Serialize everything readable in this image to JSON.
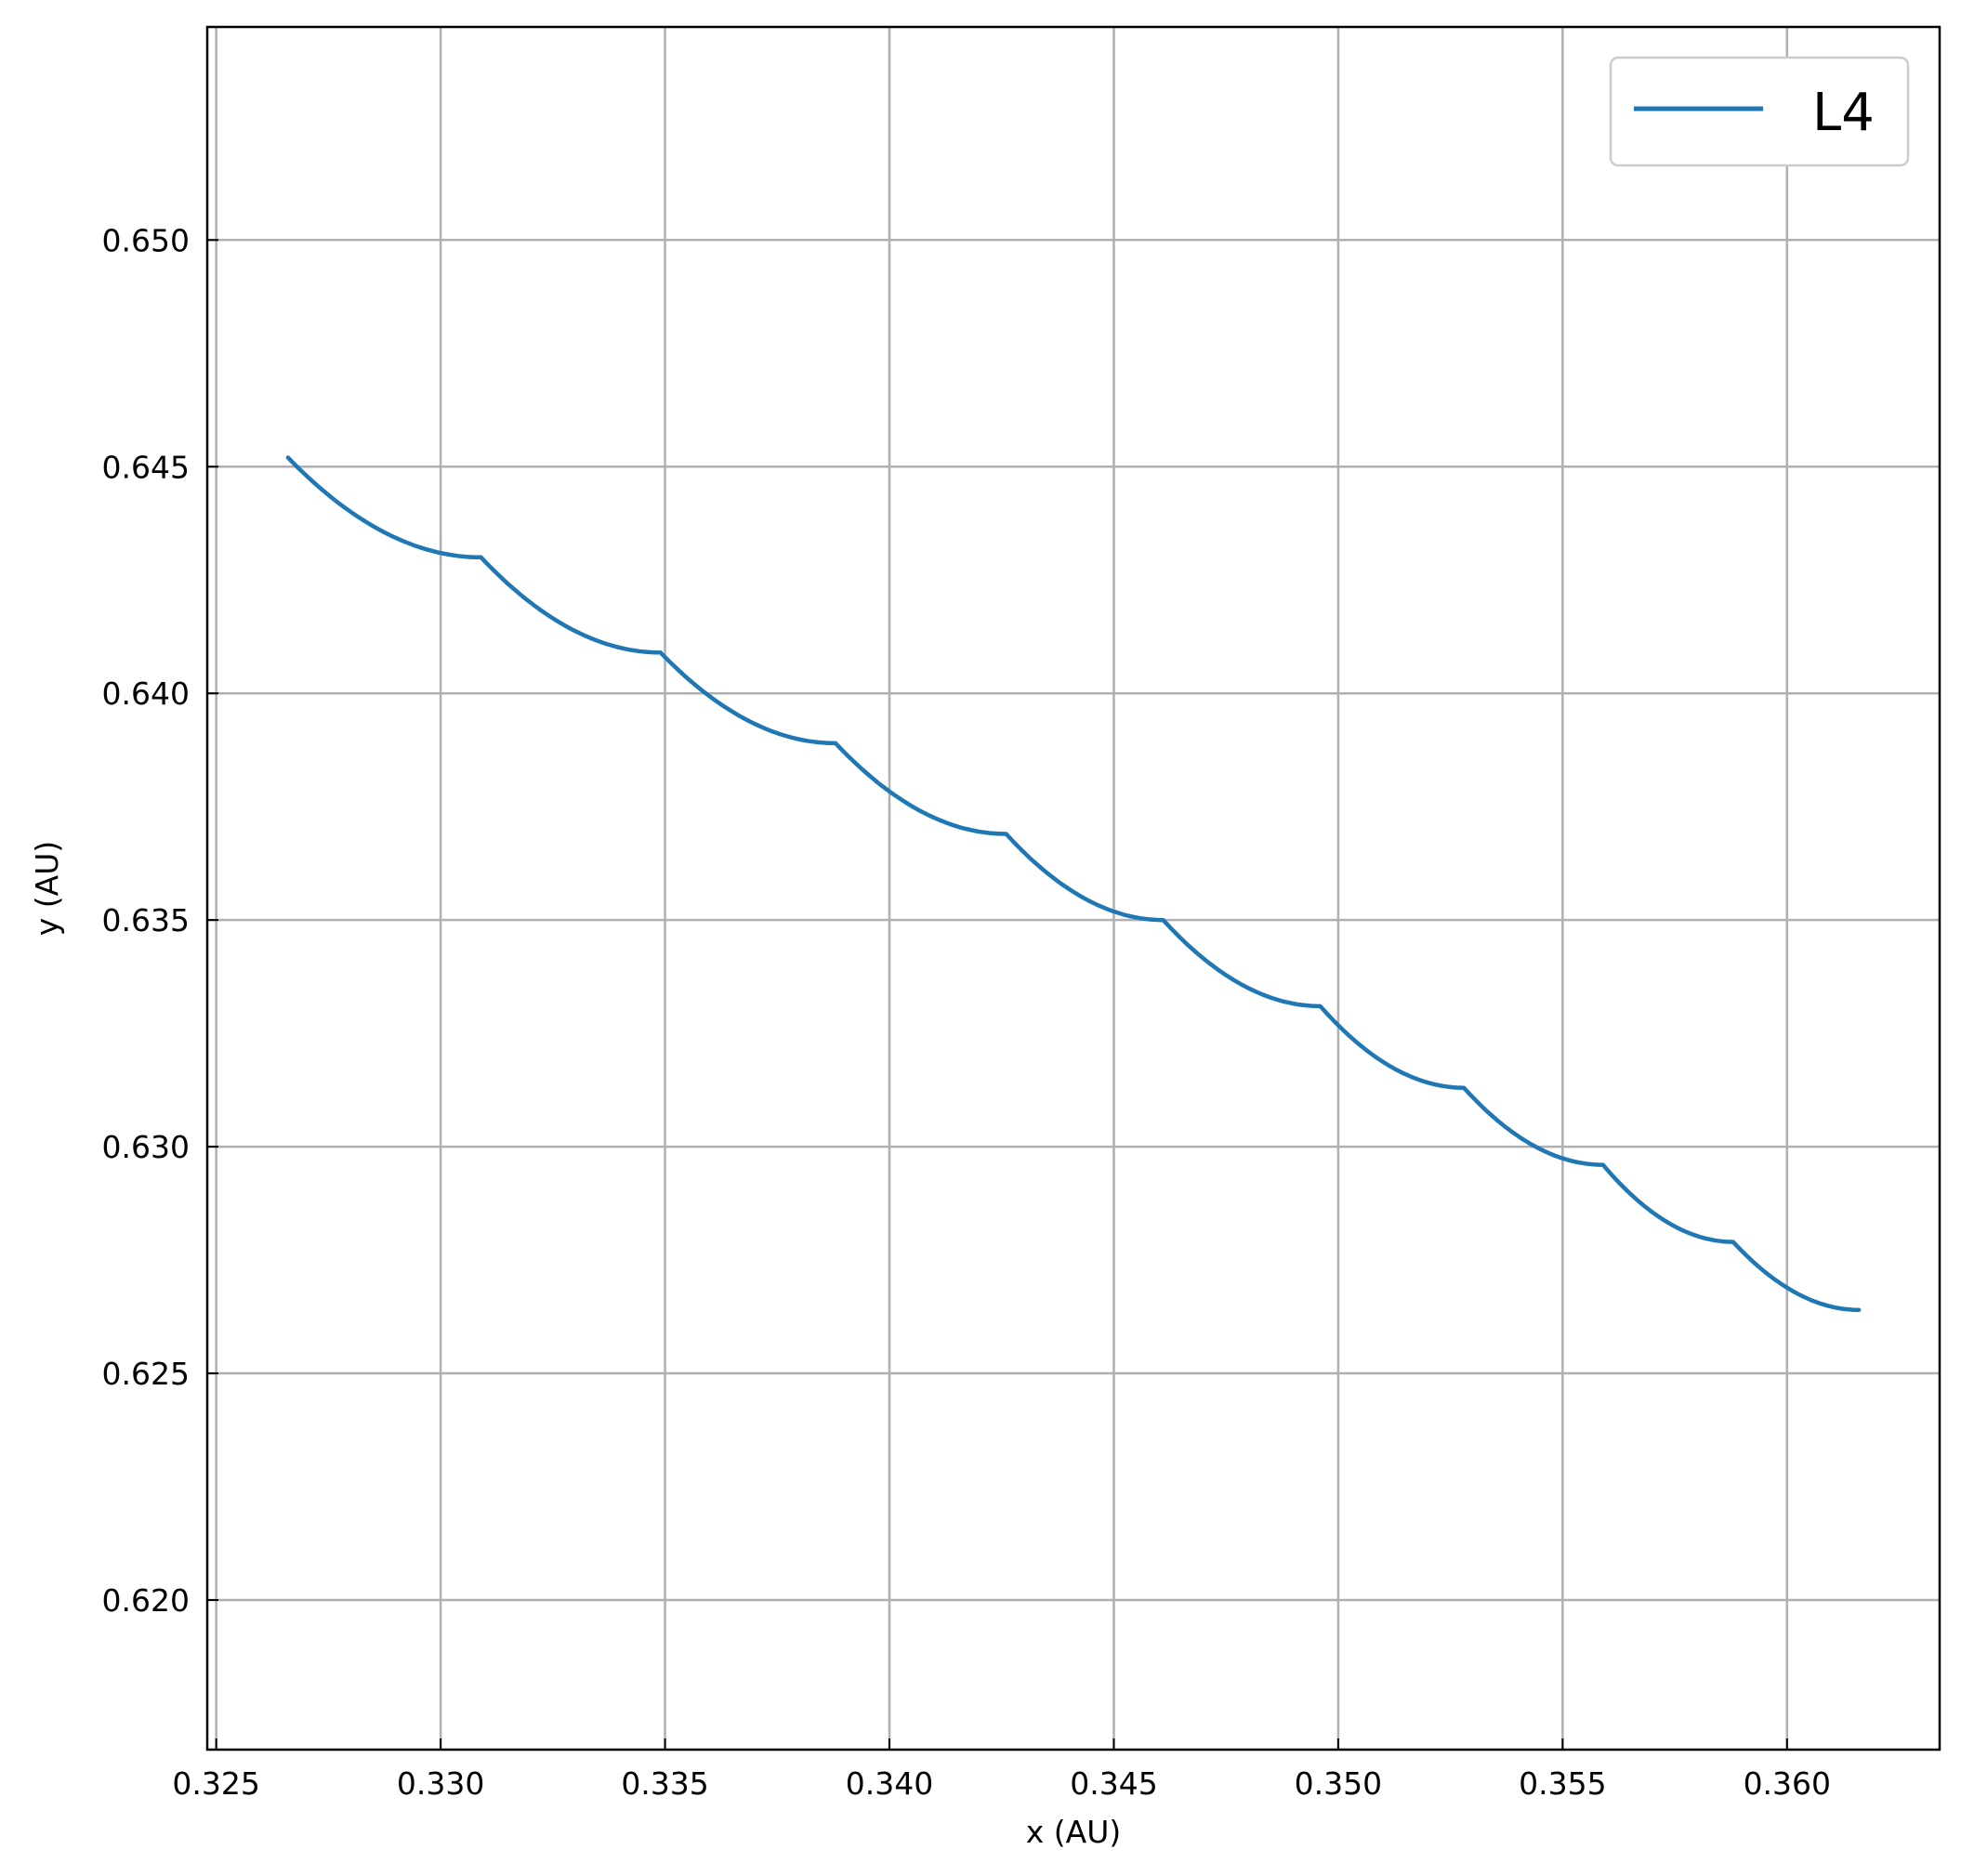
{
  "chart_data": {
    "type": "line",
    "title": "",
    "xlabel": "x (AU)",
    "ylabel": "y (AU)",
    "xlim": [
      0.3248,
      0.3634
    ],
    "ylim": [
      0.6167,
      0.6547
    ],
    "xticks": [
      "0.325",
      "0.330",
      "0.335",
      "0.340",
      "0.345",
      "0.350",
      "0.355",
      "0.360"
    ],
    "yticks": [
      "0.620",
      "0.625",
      "0.630",
      "0.635",
      "0.640",
      "0.645",
      "0.650"
    ],
    "grid": true,
    "legend": {
      "position": "top-right",
      "entries": [
        "L4"
      ]
    },
    "series": [
      {
        "name": "L4",
        "color": "#1f77b4",
        "segments": [
          {
            "x0": 0.3266,
            "y0": 0.6452,
            "x1": 0.3309,
            "y1": 0.643
          },
          {
            "x0": 0.3309,
            "y0": 0.643,
            "x1": 0.3349,
            "y1": 0.6409
          },
          {
            "x0": 0.3349,
            "y0": 0.6409,
            "x1": 0.3388,
            "y1": 0.6389
          },
          {
            "x0": 0.3388,
            "y0": 0.6389,
            "x1": 0.3426,
            "y1": 0.6369
          },
          {
            "x0": 0.3426,
            "y0": 0.6369,
            "x1": 0.3461,
            "y1": 0.635
          },
          {
            "x0": 0.3461,
            "y0": 0.635,
            "x1": 0.3496,
            "y1": 0.6331
          },
          {
            "x0": 0.3496,
            "y0": 0.6331,
            "x1": 0.3528,
            "y1": 0.6313
          },
          {
            "x0": 0.3528,
            "y0": 0.6313,
            "x1": 0.3559,
            "y1": 0.6296
          },
          {
            "x0": 0.3559,
            "y0": 0.6296,
            "x1": 0.3588,
            "y1": 0.6279
          },
          {
            "x0": 0.3588,
            "y0": 0.6279,
            "x1": 0.3616,
            "y1": 0.6264
          }
        ]
      }
    ]
  }
}
